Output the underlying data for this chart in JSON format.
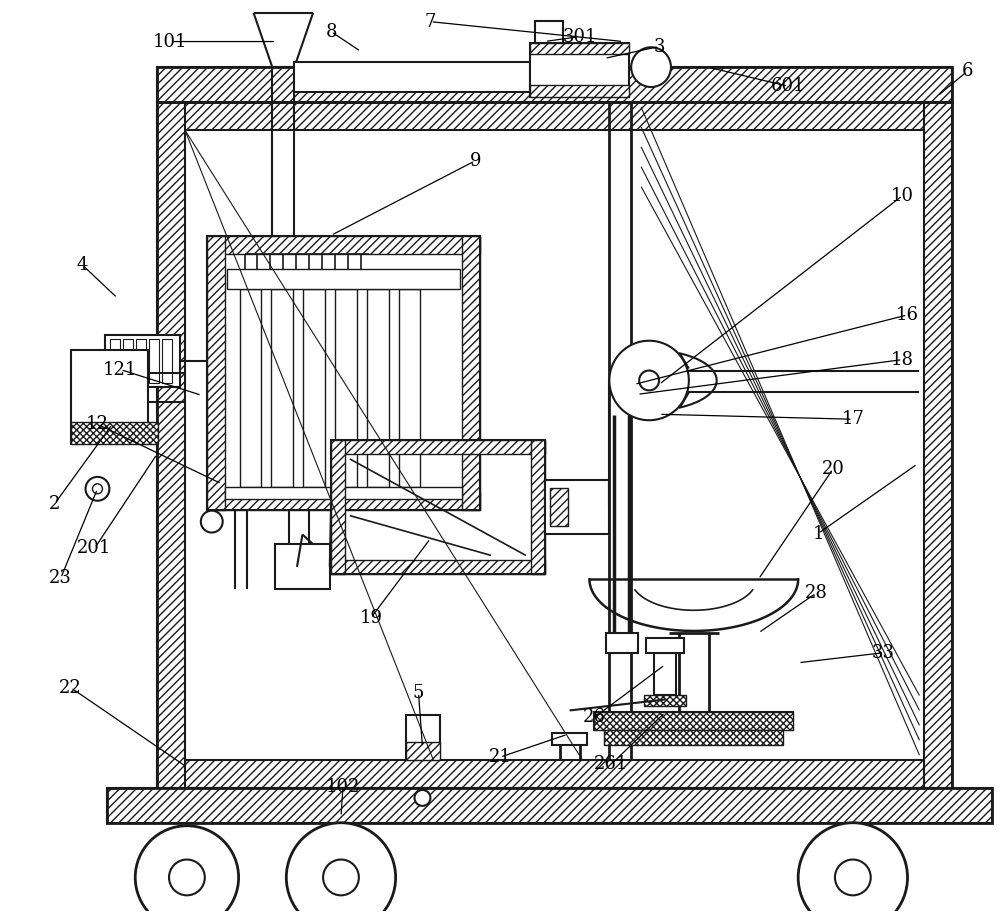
{
  "bg_color": "#ffffff",
  "lc": "#1a1a1a",
  "lw": 1.5,
  "figsize": [
    10.0,
    9.14
  ],
  "dpi": 100
}
